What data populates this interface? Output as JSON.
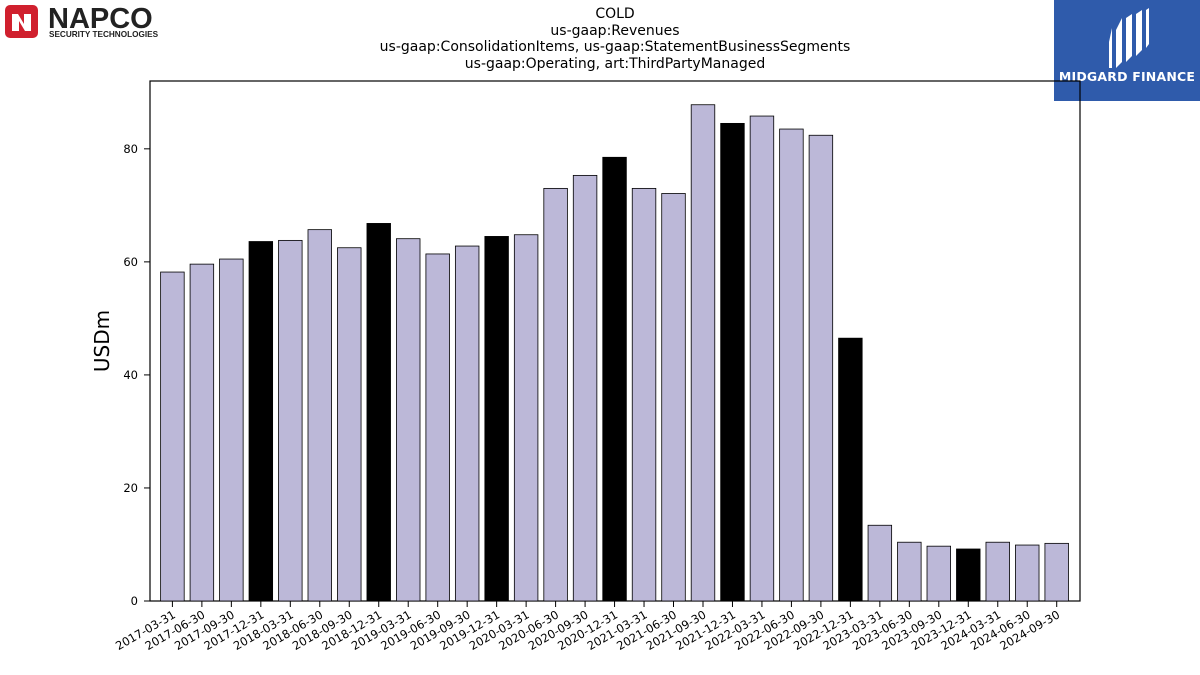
{
  "header": {
    "title_lines": [
      "COLD",
      "us-gaap:Revenues",
      "us-gaap:ConsolidationItems, us-gaap:StatementBusinessSegments",
      "us-gaap:Operating, art:ThirdPartyManaged"
    ]
  },
  "logos": {
    "left": {
      "name": "NAPCO",
      "tagline": "SECURITY TECHNOLOGIES",
      "color": "#d0202e"
    },
    "right": {
      "name": "MIDGARD FINANCE",
      "color": "#2f5bab"
    }
  },
  "chart_data": {
    "type": "bar",
    "title": "COLD\nus-gaap:Revenues\nus-gaap:ConsolidationItems, us-gaap:StatementBusinessSegments\nus-gaap:Operating, art:ThirdPartyManaged",
    "xlabel": "",
    "ylabel": "USDm",
    "ylim": [
      0,
      92
    ],
    "yticks": [
      0,
      20,
      40,
      60,
      80
    ],
    "grid": false,
    "colors": {
      "quarter": "#bcb8d8",
      "year_end": "#000000",
      "edge": "#000000"
    },
    "categories": [
      "2017-03-31",
      "2017-06-30",
      "2017-09-30",
      "2017-12-31",
      "2018-03-31",
      "2018-06-30",
      "2018-09-30",
      "2018-12-31",
      "2019-03-31",
      "2019-06-30",
      "2019-09-30",
      "2019-12-31",
      "2020-03-31",
      "2020-06-30",
      "2020-09-30",
      "2020-12-31",
      "2021-03-31",
      "2021-06-30",
      "2021-09-30",
      "2021-12-31",
      "2022-03-31",
      "2022-06-30",
      "2022-09-30",
      "2022-12-31",
      "2023-03-31",
      "2023-06-30",
      "2023-09-30",
      "2023-12-31",
      "2024-03-31",
      "2024-06-30",
      "2024-09-30"
    ],
    "values": [
      58.2,
      59.6,
      60.5,
      63.6,
      63.8,
      65.7,
      62.5,
      66.8,
      64.1,
      61.4,
      62.8,
      64.5,
      64.8,
      73.0,
      75.3,
      78.5,
      73.0,
      72.1,
      87.8,
      84.5,
      85.8,
      83.5,
      82.4,
      46.5,
      13.4,
      10.4,
      9.7,
      9.2,
      10.4,
      9.9,
      10.2
    ]
  }
}
